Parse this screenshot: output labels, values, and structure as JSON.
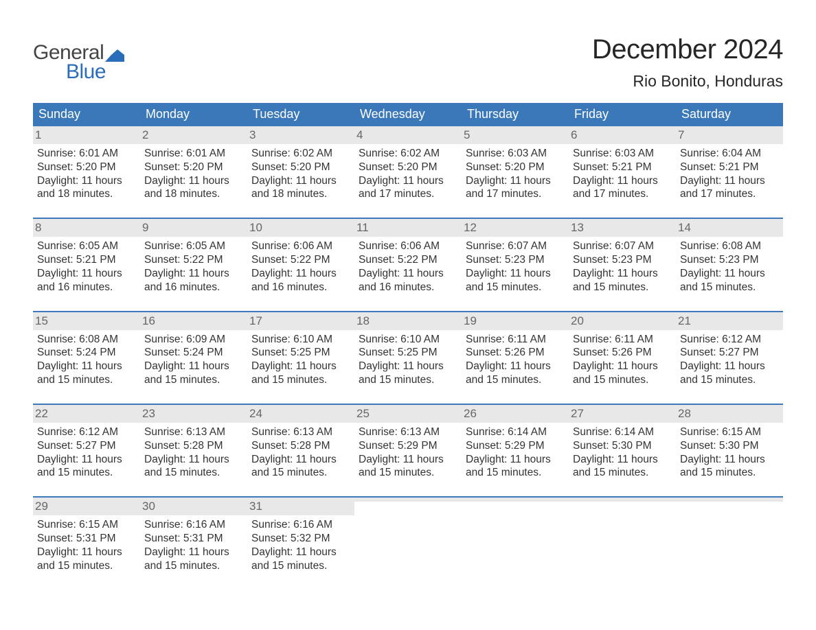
{
  "logo": {
    "text_general": "General",
    "text_blue": "Blue",
    "flag_color": "#2a6db8",
    "text_general_color": "#444444",
    "text_blue_color": "#2a6db8"
  },
  "title": "December 2024",
  "subtitle": "Rio Bonito, Honduras",
  "colors": {
    "header_bg": "#3a78b9",
    "header_text": "#ffffff",
    "week_border": "#3a78b9",
    "daynum_bg": "#e8e8e8",
    "daynum_text": "#666666",
    "body_text": "#333333",
    "page_bg": "#ffffff"
  },
  "fonts": {
    "title_size": 40,
    "subtitle_size": 23,
    "weekday_size": 18,
    "daynum_size": 17,
    "body_size": 15.5,
    "logo_size": 30
  },
  "weekdays": [
    "Sunday",
    "Monday",
    "Tuesday",
    "Wednesday",
    "Thursday",
    "Friday",
    "Saturday"
  ],
  "weeks": [
    [
      {
        "n": "1",
        "sunrise": "6:01 AM",
        "sunset": "5:20 PM",
        "daylight": "11 hours and 18 minutes."
      },
      {
        "n": "2",
        "sunrise": "6:01 AM",
        "sunset": "5:20 PM",
        "daylight": "11 hours and 18 minutes."
      },
      {
        "n": "3",
        "sunrise": "6:02 AM",
        "sunset": "5:20 PM",
        "daylight": "11 hours and 18 minutes."
      },
      {
        "n": "4",
        "sunrise": "6:02 AM",
        "sunset": "5:20 PM",
        "daylight": "11 hours and 17 minutes."
      },
      {
        "n": "5",
        "sunrise": "6:03 AM",
        "sunset": "5:20 PM",
        "daylight": "11 hours and 17 minutes."
      },
      {
        "n": "6",
        "sunrise": "6:03 AM",
        "sunset": "5:21 PM",
        "daylight": "11 hours and 17 minutes."
      },
      {
        "n": "7",
        "sunrise": "6:04 AM",
        "sunset": "5:21 PM",
        "daylight": "11 hours and 17 minutes."
      }
    ],
    [
      {
        "n": "8",
        "sunrise": "6:05 AM",
        "sunset": "5:21 PM",
        "daylight": "11 hours and 16 minutes."
      },
      {
        "n": "9",
        "sunrise": "6:05 AM",
        "sunset": "5:22 PM",
        "daylight": "11 hours and 16 minutes."
      },
      {
        "n": "10",
        "sunrise": "6:06 AM",
        "sunset": "5:22 PM",
        "daylight": "11 hours and 16 minutes."
      },
      {
        "n": "11",
        "sunrise": "6:06 AM",
        "sunset": "5:22 PM",
        "daylight": "11 hours and 16 minutes."
      },
      {
        "n": "12",
        "sunrise": "6:07 AM",
        "sunset": "5:23 PM",
        "daylight": "11 hours and 15 minutes."
      },
      {
        "n": "13",
        "sunrise": "6:07 AM",
        "sunset": "5:23 PM",
        "daylight": "11 hours and 15 minutes."
      },
      {
        "n": "14",
        "sunrise": "6:08 AM",
        "sunset": "5:23 PM",
        "daylight": "11 hours and 15 minutes."
      }
    ],
    [
      {
        "n": "15",
        "sunrise": "6:08 AM",
        "sunset": "5:24 PM",
        "daylight": "11 hours and 15 minutes."
      },
      {
        "n": "16",
        "sunrise": "6:09 AM",
        "sunset": "5:24 PM",
        "daylight": "11 hours and 15 minutes."
      },
      {
        "n": "17",
        "sunrise": "6:10 AM",
        "sunset": "5:25 PM",
        "daylight": "11 hours and 15 minutes."
      },
      {
        "n": "18",
        "sunrise": "6:10 AM",
        "sunset": "5:25 PM",
        "daylight": "11 hours and 15 minutes."
      },
      {
        "n": "19",
        "sunrise": "6:11 AM",
        "sunset": "5:26 PM",
        "daylight": "11 hours and 15 minutes."
      },
      {
        "n": "20",
        "sunrise": "6:11 AM",
        "sunset": "5:26 PM",
        "daylight": "11 hours and 15 minutes."
      },
      {
        "n": "21",
        "sunrise": "6:12 AM",
        "sunset": "5:27 PM",
        "daylight": "11 hours and 15 minutes."
      }
    ],
    [
      {
        "n": "22",
        "sunrise": "6:12 AM",
        "sunset": "5:27 PM",
        "daylight": "11 hours and 15 minutes."
      },
      {
        "n": "23",
        "sunrise": "6:13 AM",
        "sunset": "5:28 PM",
        "daylight": "11 hours and 15 minutes."
      },
      {
        "n": "24",
        "sunrise": "6:13 AM",
        "sunset": "5:28 PM",
        "daylight": "11 hours and 15 minutes."
      },
      {
        "n": "25",
        "sunrise": "6:13 AM",
        "sunset": "5:29 PM",
        "daylight": "11 hours and 15 minutes."
      },
      {
        "n": "26",
        "sunrise": "6:14 AM",
        "sunset": "5:29 PM",
        "daylight": "11 hours and 15 minutes."
      },
      {
        "n": "27",
        "sunrise": "6:14 AM",
        "sunset": "5:30 PM",
        "daylight": "11 hours and 15 minutes."
      },
      {
        "n": "28",
        "sunrise": "6:15 AM",
        "sunset": "5:30 PM",
        "daylight": "11 hours and 15 minutes."
      }
    ],
    [
      {
        "n": "29",
        "sunrise": "6:15 AM",
        "sunset": "5:31 PM",
        "daylight": "11 hours and 15 minutes."
      },
      {
        "n": "30",
        "sunrise": "6:16 AM",
        "sunset": "5:31 PM",
        "daylight": "11 hours and 15 minutes."
      },
      {
        "n": "31",
        "sunrise": "6:16 AM",
        "sunset": "5:32 PM",
        "daylight": "11 hours and 15 minutes."
      },
      {
        "empty": true
      },
      {
        "empty": true
      },
      {
        "empty": true
      },
      {
        "empty": true
      }
    ]
  ],
  "labels": {
    "sunrise_prefix": "Sunrise: ",
    "sunset_prefix": "Sunset: ",
    "daylight_prefix": "Daylight: "
  }
}
